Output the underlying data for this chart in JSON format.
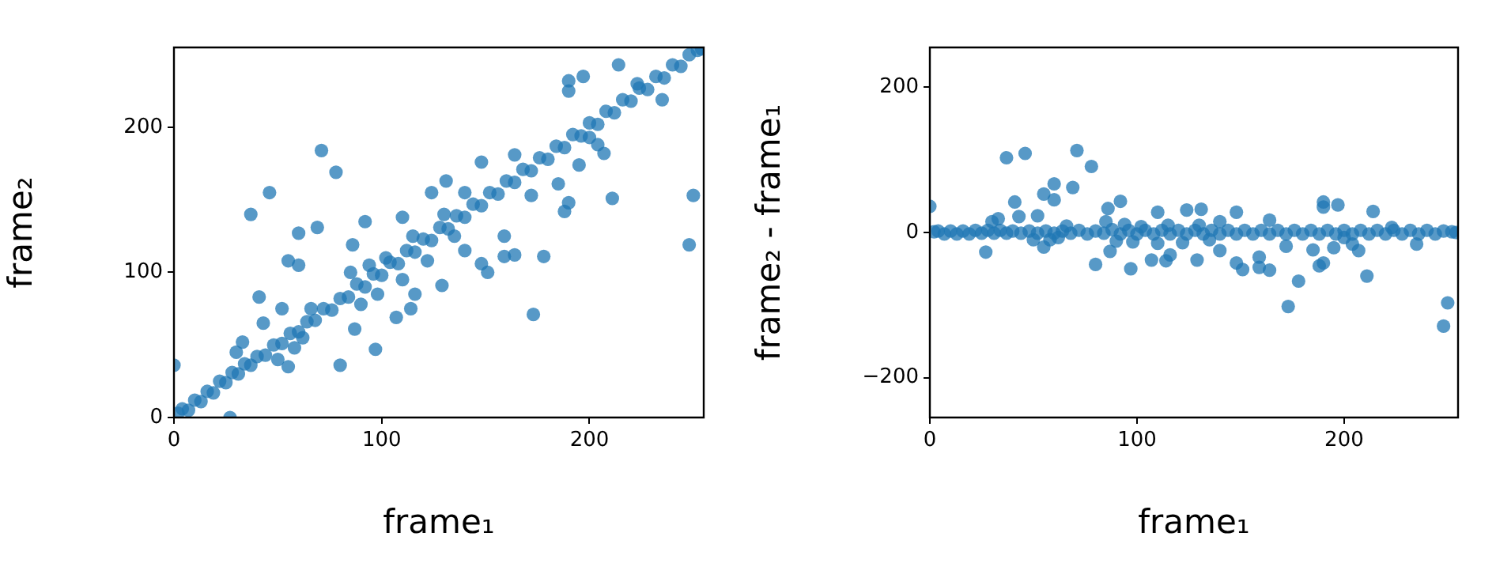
{
  "chart_data": [
    {
      "type": "scatter",
      "xlabel": "frame₁",
      "ylabel": "frame₂",
      "xlim": [
        0,
        255
      ],
      "ylim": [
        0,
        255
      ],
      "xticks": [
        0,
        100,
        200
      ],
      "yticks": [
        0,
        100,
        200
      ],
      "color": "#1f77b4",
      "marker": "circle",
      "grid": false,
      "x": [
        0,
        27,
        37,
        46,
        41,
        43,
        52,
        55,
        60,
        60,
        69,
        71,
        78,
        80,
        87,
        86,
        92,
        97,
        107,
        110,
        114,
        116,
        124,
        129,
        131,
        140,
        140,
        148,
        148,
        151,
        159,
        159,
        164,
        164,
        173,
        172,
        178,
        185,
        188,
        190,
        190,
        190,
        197,
        195,
        207,
        211,
        214,
        235,
        248,
        250,
        223,
        200,
        204,
        2,
        4,
        7,
        10,
        13,
        16,
        19,
        22,
        25,
        28,
        31,
        34,
        37,
        40,
        44,
        48,
        52,
        56,
        60,
        64,
        68,
        72,
        76,
        80,
        84,
        88,
        92,
        96,
        100,
        104,
        108,
        112,
        116,
        120,
        124,
        128,
        132,
        136,
        140,
        144,
        148,
        152,
        156,
        160,
        164,
        168,
        172,
        176,
        180,
        184,
        188,
        192,
        196,
        200,
        204,
        208,
        212,
        216,
        220,
        224,
        228,
        232,
        236,
        240,
        244,
        248,
        252,
        254,
        30,
        33,
        50,
        55,
        85,
        90,
        94,
        98,
        102,
        110,
        115,
        122,
        130,
        135,
        62,
        66,
        58
      ],
      "values": [
        36,
        0,
        140,
        155,
        83,
        65,
        75,
        108,
        127,
        105,
        131,
        184,
        169,
        36,
        61,
        119,
        135,
        47,
        69,
        138,
        75,
        85,
        155,
        91,
        163,
        155,
        115,
        106,
        176,
        100,
        125,
        111,
        112,
        181,
        71,
        153,
        111,
        161,
        142,
        148,
        232,
        225,
        235,
        174,
        182,
        151,
        243,
        219,
        119,
        153,
        230,
        193,
        188,
        3,
        6,
        5,
        12,
        11,
        18,
        17,
        25,
        24,
        31,
        30,
        37,
        36,
        42,
        43,
        50,
        51,
        58,
        59,
        66,
        67,
        75,
        74,
        82,
        83,
        92,
        90,
        99,
        98,
        107,
        106,
        115,
        114,
        123,
        122,
        131,
        130,
        139,
        138,
        147,
        146,
        155,
        154,
        163,
        162,
        171,
        170,
        179,
        178,
        187,
        186,
        195,
        194,
        203,
        202,
        211,
        210,
        219,
        218,
        227,
        226,
        235,
        234,
        243,
        242,
        250,
        253,
        254,
        45,
        52,
        40,
        35,
        100,
        78,
        105,
        85,
        110,
        95,
        125,
        108,
        140,
        125,
        55,
        75,
        48
      ]
    },
    {
      "type": "scatter",
      "xlabel": "frame₁",
      "ylabel": "frame₂ - frame₁",
      "xlim": [
        0,
        255
      ],
      "ylim": [
        -255,
        255
      ],
      "xticks": [
        0,
        100,
        200
      ],
      "yticks": [
        -200,
        0,
        200
      ],
      "color": "#1f77b4",
      "marker": "circle",
      "grid": false,
      "x": [
        0,
        27,
        37,
        46,
        41,
        43,
        52,
        55,
        60,
        60,
        69,
        71,
        78,
        80,
        87,
        86,
        92,
        97,
        107,
        110,
        114,
        116,
        124,
        129,
        131,
        140,
        140,
        148,
        148,
        151,
        159,
        159,
        164,
        164,
        173,
        172,
        178,
        185,
        188,
        190,
        190,
        190,
        197,
        195,
        207,
        211,
        214,
        235,
        248,
        250,
        223,
        200,
        204,
        2,
        4,
        7,
        10,
        13,
        16,
        19,
        22,
        25,
        28,
        31,
        34,
        37,
        40,
        44,
        48,
        52,
        56,
        60,
        64,
        68,
        72,
        76,
        80,
        84,
        88,
        92,
        96,
        100,
        104,
        108,
        112,
        116,
        120,
        124,
        128,
        132,
        136,
        140,
        144,
        148,
        152,
        156,
        160,
        164,
        168,
        172,
        176,
        180,
        184,
        188,
        192,
        196,
        200,
        204,
        208,
        212,
        216,
        220,
        224,
        228,
        232,
        236,
        240,
        244,
        248,
        252,
        254,
        30,
        33,
        50,
        55,
        85,
        90,
        94,
        98,
        102,
        110,
        115,
        122,
        130,
        135,
        62,
        66,
        58
      ],
      "values": [
        36,
        -27,
        103,
        109,
        42,
        22,
        23,
        53,
        67,
        45,
        62,
        113,
        91,
        -44,
        -26,
        33,
        43,
        -50,
        -38,
        28,
        -39,
        -31,
        31,
        -38,
        32,
        15,
        -25,
        -42,
        28,
        -51,
        -34,
        -48,
        -52,
        17,
        -102,
        -19,
        -67,
        -24,
        -46,
        -42,
        42,
        35,
        38,
        -21,
        -25,
        -60,
        29,
        -16,
        -129,
        -97,
        7,
        -7,
        -16,
        1,
        2,
        -2,
        2,
        -2,
        2,
        -2,
        3,
        -1,
        3,
        -1,
        3,
        -1,
        2,
        -1,
        2,
        -1,
        2,
        -1,
        2,
        -1,
        3,
        -2,
        2,
        -1,
        4,
        -2,
        3,
        -2,
        3,
        -2,
        3,
        -2,
        3,
        -2,
        3,
        -2,
        3,
        -2,
        3,
        -2,
        3,
        -2,
        3,
        -2,
        3,
        -2,
        3,
        -2,
        3,
        -2,
        3,
        -2,
        3,
        -2,
        3,
        -2,
        3,
        -2,
        3,
        -2,
        3,
        -2,
        3,
        -2,
        2,
        1,
        0,
        15,
        19,
        -10,
        -20,
        15,
        -12,
        11,
        -13,
        8,
        -15,
        10,
        -14,
        10,
        -10,
        -7,
        9,
        -10
      ]
    }
  ]
}
